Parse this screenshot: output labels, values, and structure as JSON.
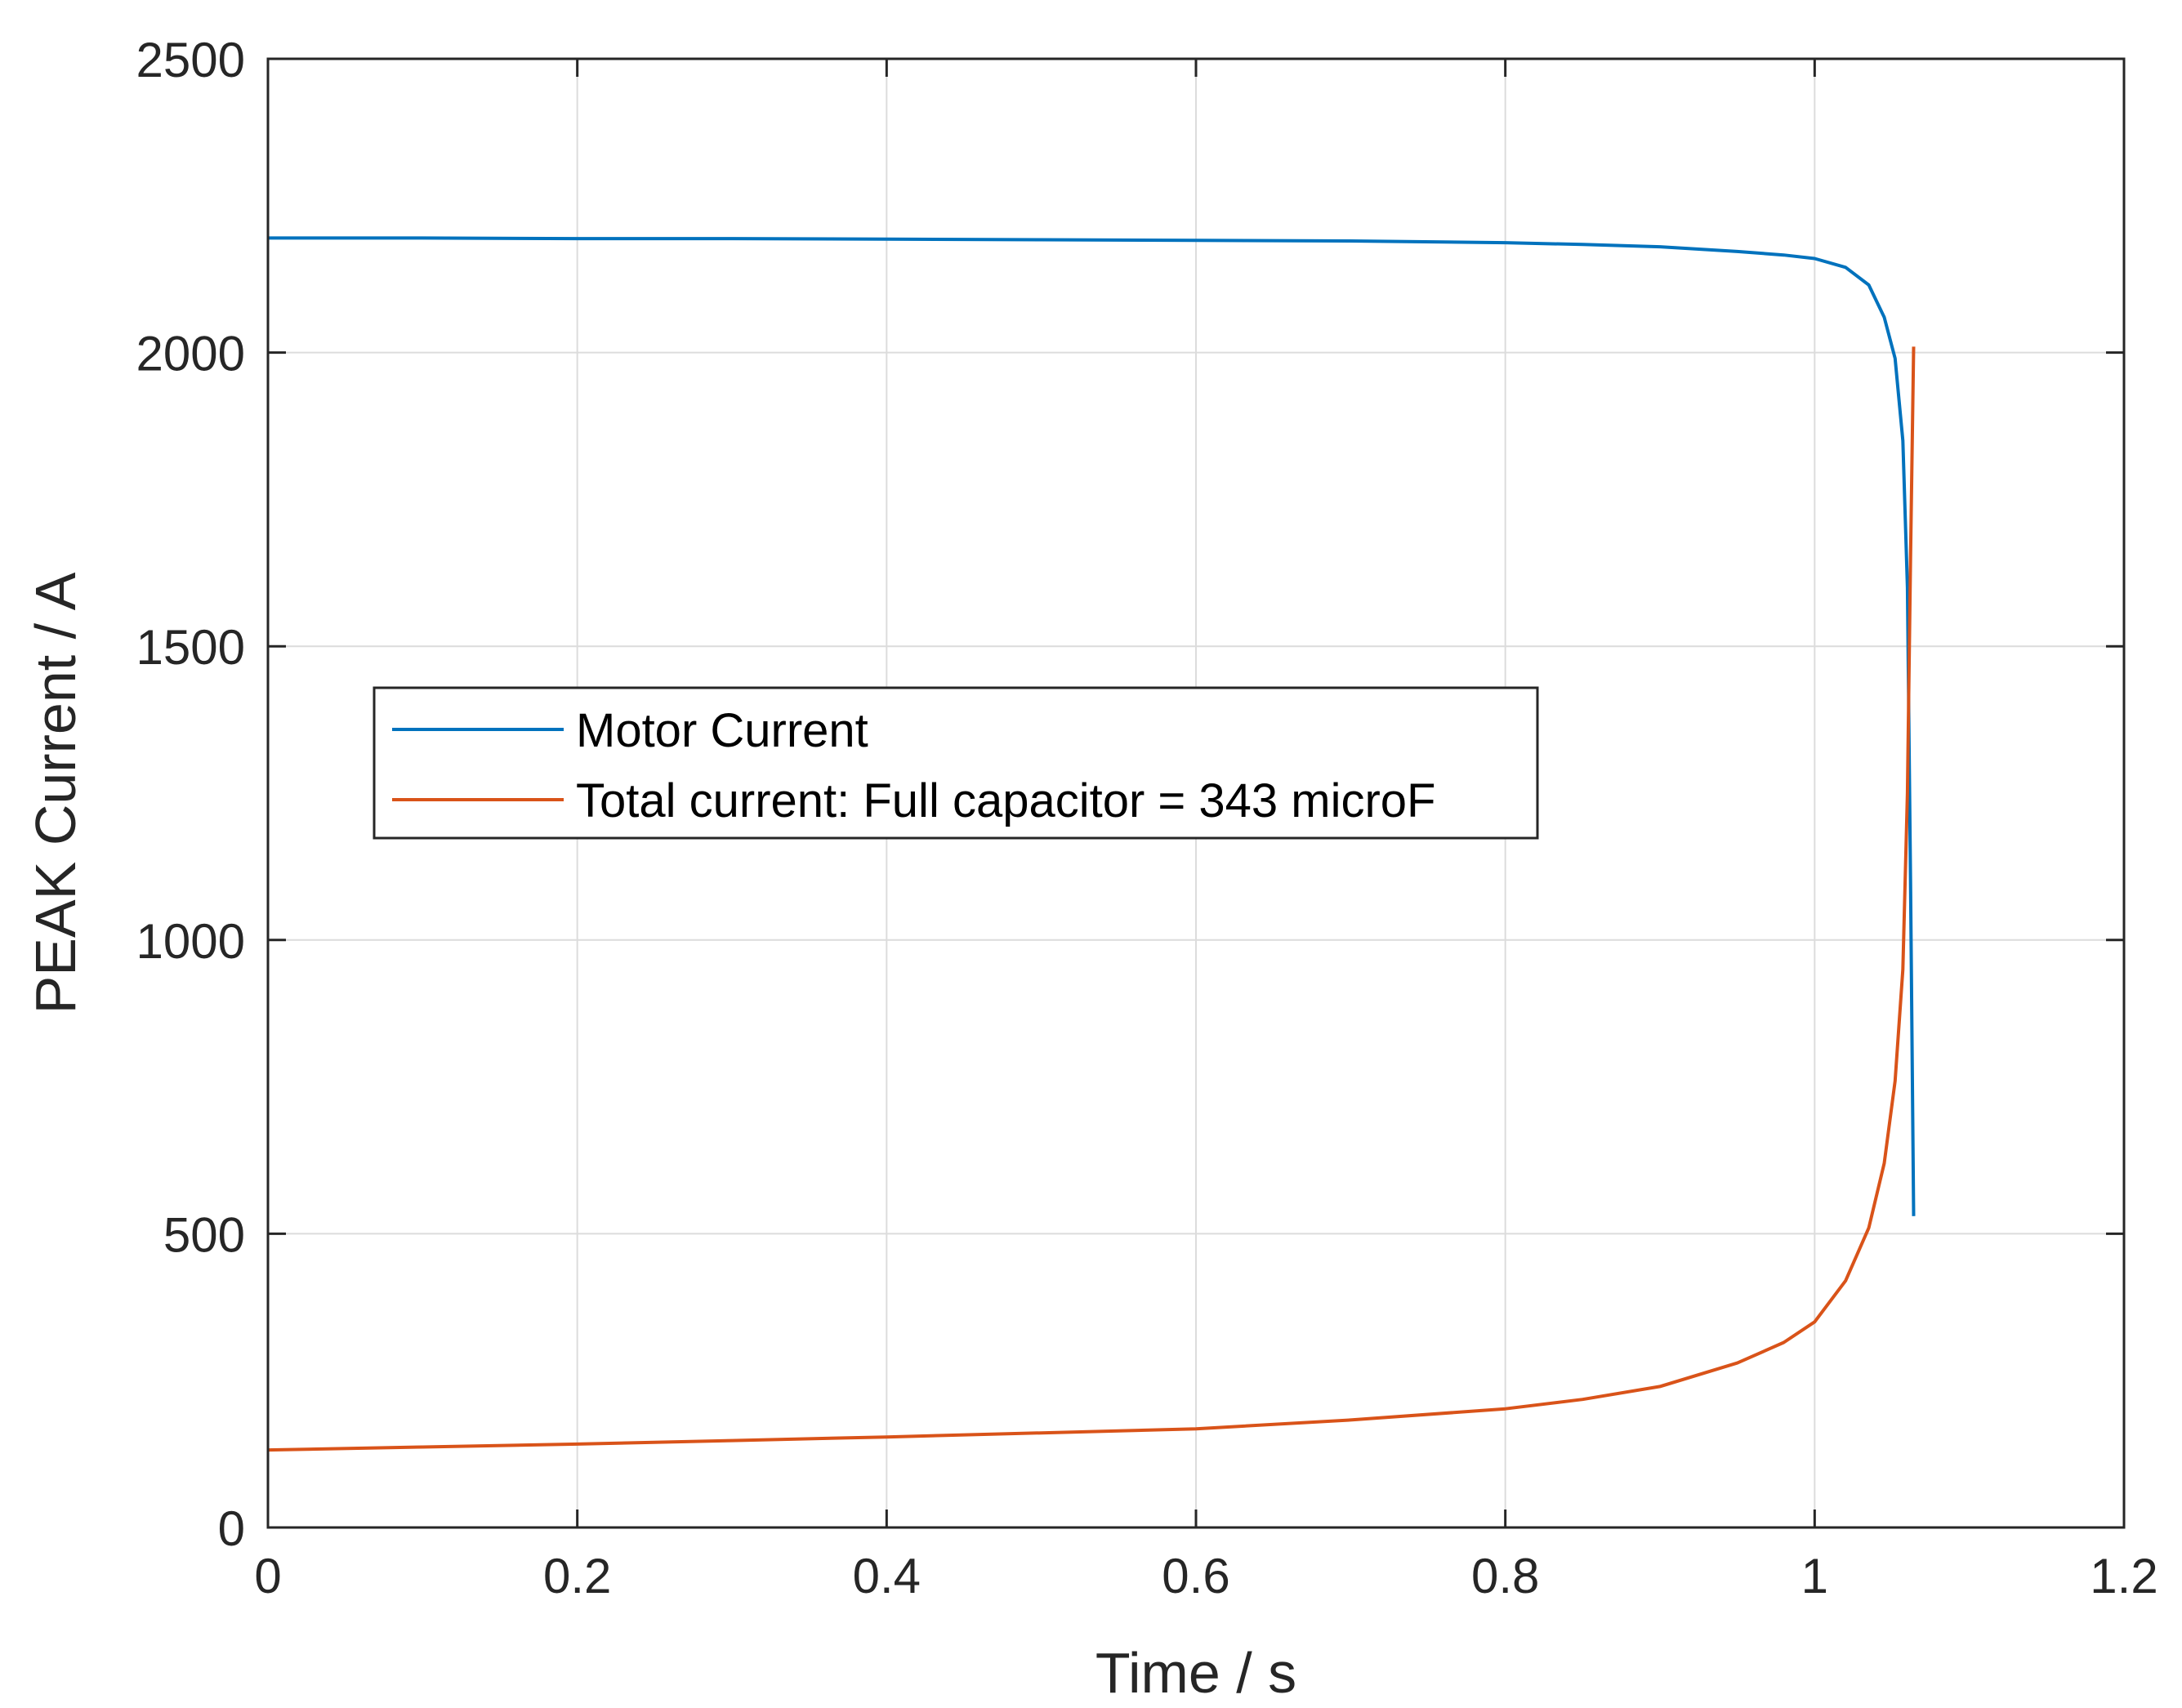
{
  "chart_data": {
    "type": "line",
    "title": "",
    "xlabel": "Time / s",
    "ylabel": "PEAK Current / A",
    "xlim": [
      0,
      1.2
    ],
    "ylim": [
      0,
      2500
    ],
    "xticks": [
      0,
      0.2,
      0.4,
      0.6,
      0.8,
      1.0,
      1.2
    ],
    "xtick_labels": [
      "0",
      "0.2",
      "0.4",
      "0.6",
      "0.8",
      "1",
      "1.2"
    ],
    "yticks": [
      0,
      500,
      1000,
      1500,
      2000,
      2500
    ],
    "ytick_labels": [
      "0",
      "500",
      "1000",
      "1500",
      "2000",
      "2500"
    ],
    "grid": true,
    "legend_position": "center-left",
    "series": [
      {
        "name": "Motor Current",
        "color": "#0072BD",
        "x": [
          0,
          0.1,
          0.2,
          0.3,
          0.4,
          0.5,
          0.6,
          0.7,
          0.8,
          0.85,
          0.9,
          0.95,
          0.98,
          1.0,
          1.02,
          1.035,
          1.045,
          1.052,
          1.057,
          1.06,
          1.062,
          1.064
        ],
        "y": [
          2195,
          2195,
          2194,
          2194,
          2193,
          2192,
          2191,
          2190,
          2187,
          2184,
          2180,
          2172,
          2166,
          2160,
          2145,
          2115,
          2060,
          1990,
          1850,
          1600,
          1100,
          530
        ]
      },
      {
        "name": "Total current: Full capacitor = 343 microF",
        "color": "#D95319",
        "x": [
          0,
          0.1,
          0.2,
          0.3,
          0.4,
          0.5,
          0.6,
          0.7,
          0.8,
          0.85,
          0.9,
          0.95,
          0.98,
          1.0,
          1.02,
          1.035,
          1.045,
          1.052,
          1.057,
          1.06,
          1.062,
          1.064
        ],
        "y": [
          132,
          137,
          142,
          148,
          154,
          161,
          168,
          183,
          202,
          218,
          240,
          280,
          315,
          350,
          420,
          510,
          620,
          760,
          950,
          1250,
          1650,
          2010
        ]
      }
    ]
  }
}
